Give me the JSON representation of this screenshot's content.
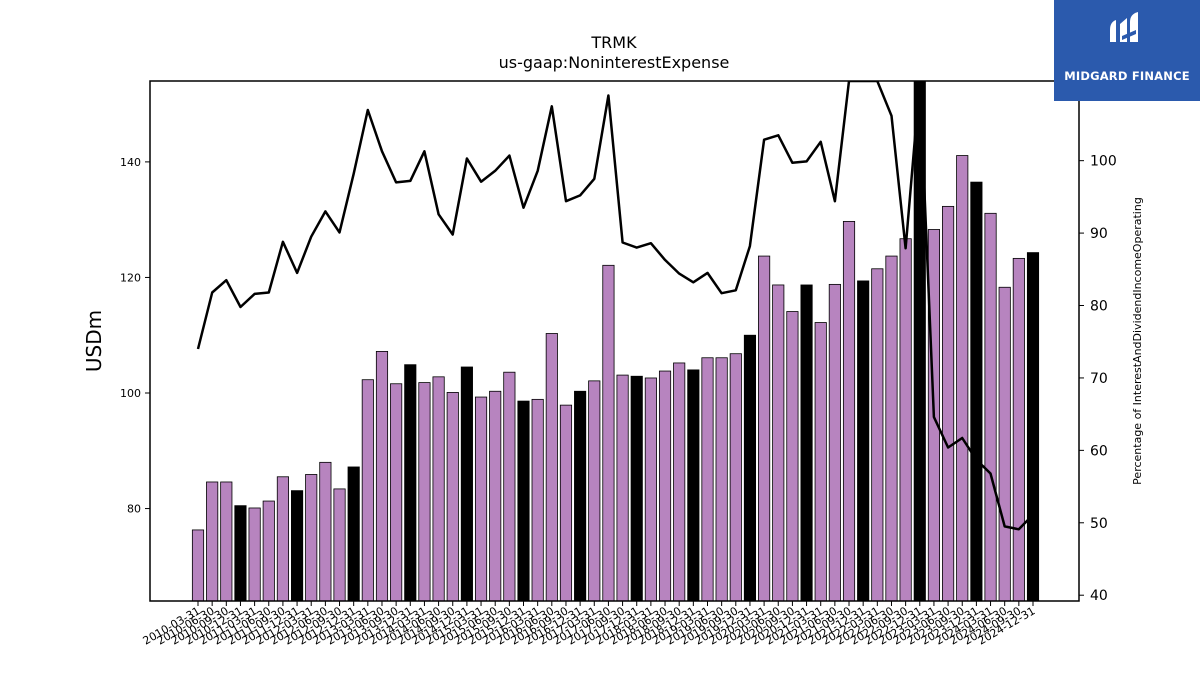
{
  "brand": {
    "name": "MIDGARD FINANCE",
    "logo_icon": "midgard-m-logo-icon",
    "background_color": "#2b5aad",
    "text_color": "#ffffff"
  },
  "chart_data": {
    "type": "bar",
    "title": "TRMK",
    "subtitle": "us-gaap:NoninterestExpense",
    "ylabel": "USDm",
    "y2label": "Percentage of InterestAndDividendIncomeOperating",
    "ylim": [
      64,
      154
    ],
    "y_ticks": [
      80,
      100,
      120,
      140
    ],
    "y2lim": [
      39.2,
      111
    ],
    "y2_ticks": [
      40,
      50,
      60,
      70,
      80,
      90,
      100
    ],
    "bar_colors": {
      "default": "#b784bf",
      "highlight": "#000000"
    },
    "line_color": "#000000",
    "categories": [
      "2010-03-31",
      "2010-06-30",
      "2010-09-30",
      "2010-12-31",
      "2011-03-31",
      "2011-06-30",
      "2011-09-30",
      "2011-12-31",
      "2012-03-31",
      "2012-06-30",
      "2012-09-30",
      "2012-12-31",
      "2013-03-31",
      "2013-06-30",
      "2013-09-30",
      "2013-12-31",
      "2014-03-31",
      "2014-06-30",
      "2014-09-30",
      "2014-12-31",
      "2015-03-31",
      "2015-06-30",
      "2015-09-30",
      "2015-12-31",
      "2016-03-31",
      "2016-06-30",
      "2016-09-30",
      "2016-12-31",
      "2017-03-31",
      "2017-06-30",
      "2017-09-30",
      "2017-12-31",
      "2018-03-31",
      "2018-06-30",
      "2018-09-30",
      "2018-12-31",
      "2019-03-31",
      "2019-06-30",
      "2019-09-30",
      "2019-12-31",
      "2020-03-31",
      "2020-06-30",
      "2020-09-30",
      "2020-12-31",
      "2021-03-31",
      "2021-06-30",
      "2021-09-30",
      "2021-12-31",
      "2022-03-31",
      "2022-06-30",
      "2022-09-30",
      "2022-12-31",
      "2023-03-31",
      "2023-06-30",
      "2023-09-30",
      "2023-12-31",
      "2024-03-31",
      "2024-06-30",
      "2024-09-30",
      "2024-12-31"
    ],
    "series": [
      {
        "values": [
          76.3,
          84.6,
          84.6,
          80.5,
          80.1,
          81.3,
          85.5,
          83.1,
          85.9,
          88.0,
          83.4,
          87.2,
          102.3,
          107.2,
          101.6,
          104.9,
          101.8,
          102.8,
          100.1,
          104.5,
          99.3,
          100.3,
          103.6,
          98.6,
          98.9,
          110.3,
          97.9,
          100.3,
          102.1,
          122.1,
          103.1,
          102.9,
          102.6,
          103.8,
          105.2,
          104.0,
          106.1,
          106.1,
          106.8,
          110.0,
          123.7,
          118.7,
          114.1,
          118.7,
          112.2,
          118.8,
          129.7,
          119.4,
          121.5,
          123.7,
          126.7,
          154.0,
          128.3,
          132.3,
          141.1,
          136.5,
          131.1,
          118.3,
          123.3,
          124.3
        ],
        "highlight_indices": [
          3,
          7,
          11,
          15,
          19,
          23,
          27,
          31,
          35,
          39,
          43,
          47,
          51,
          55,
          59
        ]
      },
      {
        "values": [
          74.0,
          81.8,
          83.5,
          79.8,
          81.6,
          81.8,
          88.8,
          84.5,
          89.5,
          93.0,
          90.1,
          98.2,
          107.0,
          101.3,
          97.0,
          97.2,
          101.3,
          92.6,
          89.8,
          100.3,
          97.1,
          98.6,
          100.7,
          93.5,
          98.6,
          107.5,
          94.4,
          95.2,
          97.5,
          109.0,
          88.7,
          88.0,
          88.6,
          86.3,
          84.4,
          83.2,
          84.5,
          81.7,
          82.1,
          88.2,
          102.9,
          103.5,
          99.7,
          99.9,
          102.6,
          94.4,
          111,
          111,
          111,
          106.2,
          87.9,
          111,
          64.6,
          60.4,
          61.7,
          58.7,
          56.8,
          49.5,
          49.1,
          51.1
        ]
      }
    ]
  }
}
